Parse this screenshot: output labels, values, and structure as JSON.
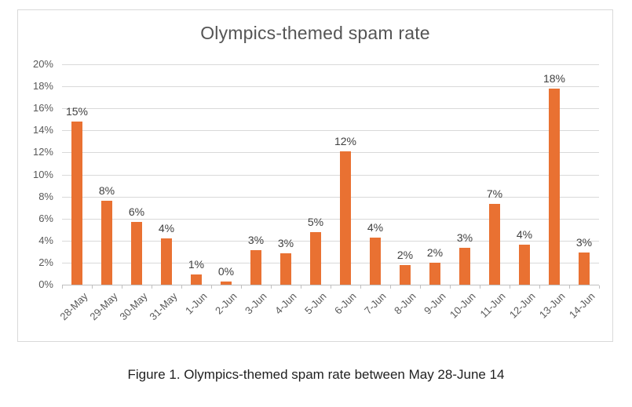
{
  "figure": {
    "caption": "Figure 1. Olympics-themed spam rate between May 28-June 14"
  },
  "colors": {
    "bar": "#E97132",
    "gridline": "#D9D9D9",
    "axis_line": "#BFBFBF",
    "axis_text": "#595959",
    "data_label_text": "#404040",
    "title_text": "#555555",
    "chart_border": "#D9D9D9",
    "background": "#FFFFFF"
  },
  "chart_data": {
    "type": "bar",
    "title": "Olympics-themed spam rate",
    "xlabel": "",
    "ylabel": "",
    "categories": [
      "28-May",
      "29-May",
      "30-May",
      "31-May",
      "1-Jun",
      "2-Jun",
      "3-Jun",
      "4-Jun",
      "5-Jun",
      "6-Jun",
      "7-Jun",
      "8-Jun",
      "9-Jun",
      "10-Jun",
      "11-Jun",
      "12-Jun",
      "13-Jun",
      "14-Jun"
    ],
    "values": [
      15,
      8,
      6,
      4,
      1,
      0,
      3,
      3,
      5,
      12,
      4,
      2,
      2,
      3,
      7,
      4,
      18,
      3
    ],
    "data_labels": [
      "15%",
      "8%",
      "6%",
      "4%",
      "1%",
      "0%",
      "3%",
      "3%",
      "5%",
      "12%",
      "4%",
      "2%",
      "2%",
      "3%",
      "7%",
      "4%",
      "18%",
      "3%"
    ],
    "bar_heights_pct": [
      14.8,
      7.6,
      5.7,
      4.2,
      0.9,
      0.25,
      3.1,
      2.85,
      4.8,
      12.1,
      4.3,
      1.8,
      2.0,
      3.35,
      7.35,
      3.65,
      17.8,
      2.95
    ],
    "ylim": [
      0,
      20
    ],
    "ytick_step": 2,
    "ytick_labels": [
      "0%",
      "2%",
      "4%",
      "6%",
      "8%",
      "10%",
      "12%",
      "14%",
      "16%",
      "18%",
      "20%"
    ],
    "grid": true,
    "legend": false
  }
}
